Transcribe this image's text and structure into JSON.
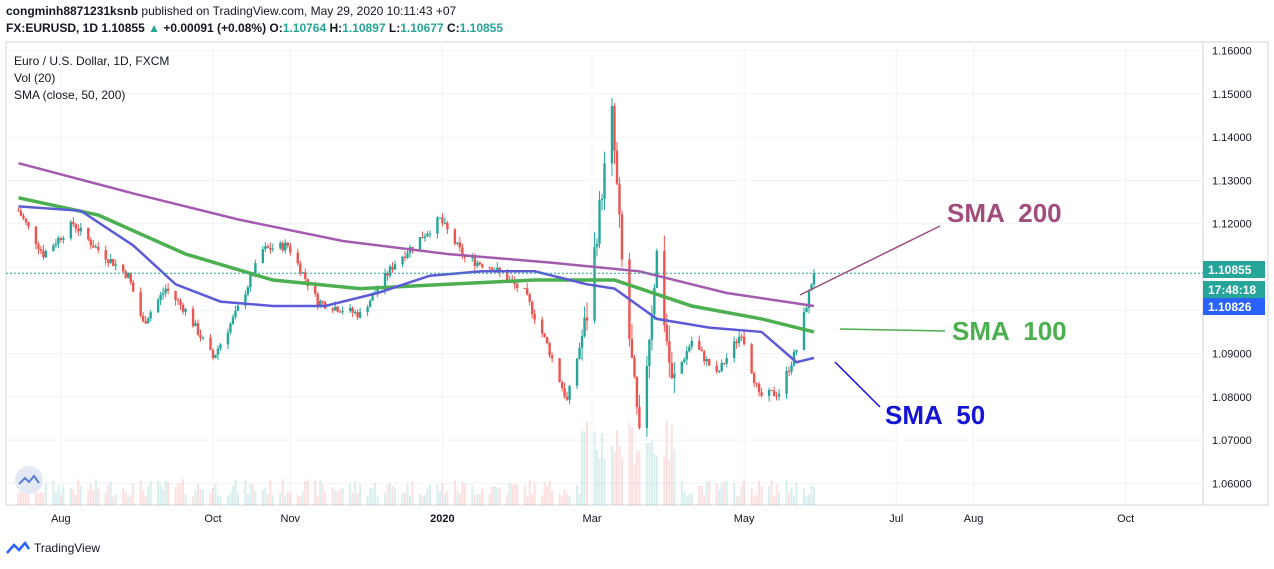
{
  "header": {
    "user": "congminh8871231ksnb",
    "published": "published on TradingView.com, May 29, 2020 10:11:43 +07",
    "symbol": "FX:EURUSD, 1D",
    "last": "1.10855",
    "change": "+0.00091 (+0.08%)",
    "o_label": "O:",
    "o_val": "1.10764",
    "h_label": "H:",
    "h_val": "1.10897",
    "l_label": "L:",
    "l_val": "1.10677",
    "c_label": "C:",
    "c_val": "1.10855"
  },
  "legend": {
    "title": "Euro / U.S. Dollar, 1D, FXCM",
    "vol": "Vol (20)",
    "sma": "SMA (close, 50, 200)"
  },
  "footer": {
    "brand": "TradingView"
  },
  "colors": {
    "up": "#26a69a",
    "down": "#ef5350",
    "sma50": "#5b5bd6",
    "sma100": "#4caf50",
    "sma200": "#a35bb0",
    "price_line": "#26a69a"
  },
  "chart_data": {
    "type": "candlestick",
    "x_ticks": [
      "Aug",
      "Oct",
      "Nov",
      "2020",
      "Mar",
      "May",
      "Jul",
      "Aug",
      "Oct"
    ],
    "y_ticks": [
      "1.16000",
      "1.15000",
      "1.14000",
      "1.13000",
      "1.12000",
      "1.11000",
      "1.10000",
      "1.09000",
      "1.08000",
      "1.07000",
      "1.06000"
    ],
    "y_tick_values": [
      1.16,
      1.15,
      1.14,
      1.13,
      1.12,
      1.11,
      1.1,
      1.09,
      1.08,
      1.07,
      1.06
    ],
    "ylim": [
      1.055,
      1.162
    ],
    "price_labels": {
      "last": "1.10855",
      "countdown": "17:48:18",
      "ask": "1.10826"
    },
    "close_anchors": [
      [
        "2019-07-15",
        1.123
      ],
      [
        "2019-07-25",
        1.113
      ],
      [
        "2019-08-06",
        1.12
      ],
      [
        "2019-08-14",
        1.115
      ],
      [
        "2019-08-28",
        1.108
      ],
      [
        "2019-09-03",
        1.097
      ],
      [
        "2019-09-12",
        1.105
      ],
      [
        "2019-09-20",
        1.1
      ],
      [
        "2019-10-01",
        1.089
      ],
      [
        "2019-10-10",
        1.099
      ],
      [
        "2019-10-21",
        1.114
      ],
      [
        "2019-10-31",
        1.115
      ],
      [
        "2019-11-12",
        1.102
      ],
      [
        "2019-11-29",
        1.099
      ],
      [
        "2019-12-13",
        1.111
      ],
      [
        "2019-12-31",
        1.121
      ],
      [
        "2020-01-10",
        1.112
      ],
      [
        "2020-01-21",
        1.11
      ],
      [
        "2020-02-03",
        1.104
      ],
      [
        "2020-02-12",
        1.092
      ],
      [
        "2020-02-20",
        1.079
      ],
      [
        "2020-02-28",
        1.099
      ],
      [
        "2020-03-05",
        1.128
      ],
      [
        "2020-03-09",
        1.145
      ],
      [
        "2020-03-13",
        1.111
      ],
      [
        "2020-03-20",
        1.07
      ],
      [
        "2020-03-27",
        1.113
      ],
      [
        "2020-04-02",
        1.083
      ],
      [
        "2020-04-10",
        1.093
      ],
      [
        "2020-04-20",
        1.085
      ],
      [
        "2020-04-30",
        1.095
      ],
      [
        "2020-05-07",
        1.08
      ],
      [
        "2020-05-15",
        1.081
      ],
      [
        "2020-05-22",
        1.091
      ],
      [
        "2020-05-29",
        1.109
      ]
    ],
    "sma50": [
      [
        "2019-07-15",
        1.124
      ],
      [
        "2019-08-09",
        1.123
      ],
      [
        "2019-08-30",
        1.115
      ],
      [
        "2019-09-16",
        1.106
      ],
      [
        "2019-10-04",
        1.102
      ],
      [
        "2019-10-25",
        1.101
      ],
      [
        "2019-11-15",
        1.101
      ],
      [
        "2019-12-06",
        1.104
      ],
      [
        "2019-12-27",
        1.108
      ],
      [
        "2020-01-17",
        1.109
      ],
      [
        "2020-02-07",
        1.109
      ],
      [
        "2020-02-28",
        1.106
      ],
      [
        "2020-03-10",
        1.105
      ],
      [
        "2020-03-27",
        1.098
      ],
      [
        "2020-04-17",
        1.096
      ],
      [
        "2020-05-08",
        1.095
      ],
      [
        "2020-05-22",
        1.088
      ],
      [
        "2020-05-29",
        1.089
      ]
    ],
    "sma100": [
      [
        "2019-07-15",
        1.126
      ],
      [
        "2019-08-16",
        1.122
      ],
      [
        "2019-09-20",
        1.113
      ],
      [
        "2019-10-25",
        1.107
      ],
      [
        "2019-11-29",
        1.105
      ],
      [
        "2020-01-03",
        1.106
      ],
      [
        "2020-02-07",
        1.107
      ],
      [
        "2020-03-10",
        1.107
      ],
      [
        "2020-04-10",
        1.101
      ],
      [
        "2020-05-08",
        1.098
      ],
      [
        "2020-05-29",
        1.095
      ]
    ],
    "sma200": [
      [
        "2019-07-15",
        1.134
      ],
      [
        "2019-08-30",
        1.127
      ],
      [
        "2019-10-11",
        1.121
      ],
      [
        "2019-11-22",
        1.116
      ],
      [
        "2020-01-03",
        1.113
      ],
      [
        "2020-02-14",
        1.111
      ],
      [
        "2020-03-20",
        1.109
      ],
      [
        "2020-04-24",
        1.104
      ],
      [
        "2020-05-29",
        1.101
      ]
    ],
    "annotations": [
      {
        "label": "SMA  200",
        "color": "#a04d7e"
      },
      {
        "label": "SMA  100",
        "color": "#4caf50"
      },
      {
        "label": "SMA  50",
        "color": "#1414d2"
      }
    ]
  }
}
